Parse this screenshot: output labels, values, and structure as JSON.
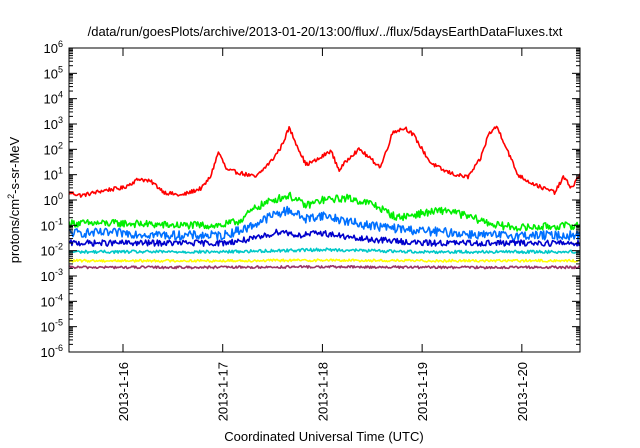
{
  "chart_data": {
    "type": "line",
    "title": "/data/run/goesPlots/archive/2013-01-20/13:00/flux/../flux/5daysEarthDataFluxes.txt",
    "xlabel": "Coordinated Universal Time (UTC)",
    "ylabel_parts": [
      "protons/cm",
      "2",
      "-s-sr-MeV"
    ],
    "y_scale": "log",
    "ylim": [
      1e-06,
      1000000.0
    ],
    "y_ticks": [
      {
        "base": "10",
        "exp": "-6",
        "value": 1e-06
      },
      {
        "base": "10",
        "exp": "-5",
        "value": 1e-05
      },
      {
        "base": "10",
        "exp": "-4",
        "value": 0.0001
      },
      {
        "base": "10",
        "exp": "-3",
        "value": 0.001
      },
      {
        "base": "10",
        "exp": "-2",
        "value": 0.01
      },
      {
        "base": "10",
        "exp": "-1",
        "value": 0.1
      },
      {
        "base": "10",
        "exp": "0",
        "value": 1
      },
      {
        "base": "10",
        "exp": "1",
        "value": 10
      },
      {
        "base": "10",
        "exp": "2",
        "value": 100
      },
      {
        "base": "10",
        "exp": "3",
        "value": 1000
      },
      {
        "base": "10",
        "exp": "4",
        "value": 10000
      },
      {
        "base": "10",
        "exp": "5",
        "value": 100000
      },
      {
        "base": "10",
        "exp": "6",
        "value": 1000000
      }
    ],
    "x_range_days": [
      "2013-01-15 11:00",
      "2013-01-20 14:00"
    ],
    "x_ticks": [
      {
        "label": "2013-1-16",
        "date": "2013-01-16"
      },
      {
        "label": "2013-1-17",
        "date": "2013-01-17"
      },
      {
        "label": "2013-1-18",
        "date": "2013-01-18"
      },
      {
        "label": "2013-1-19",
        "date": "2013-01-19"
      },
      {
        "label": "2013-1-20",
        "date": "2013-01-20"
      }
    ],
    "grid": false,
    "legend": "none",
    "series": [
      {
        "color": "#ff0000",
        "noise": 0.08,
        "x": [
          "2013-01-15 11:00",
          "2013-01-15 14:00",
          "2013-01-15 20:00",
          "2013-01-16 00:00",
          "2013-01-16 04:00",
          "2013-01-16 07:00",
          "2013-01-16 10:00",
          "2013-01-16 14:00",
          "2013-01-16 19:00",
          "2013-01-16 21:00",
          "2013-01-16 23:00",
          "2013-01-17 01:00",
          "2013-01-17 04:00",
          "2013-01-17 08:00",
          "2013-01-17 12:00",
          "2013-01-17 14:00",
          "2013-01-17 16:00",
          "2013-01-17 20:00",
          "2013-01-17 23:00",
          "2013-01-18 02:00",
          "2013-01-18 04:00",
          "2013-01-18 07:00",
          "2013-01-18 09:00",
          "2013-01-18 11:00",
          "2013-01-18 14:00",
          "2013-01-18 17:00",
          "2013-01-18 20:00",
          "2013-01-18 22:00",
          "2013-01-19 00:00",
          "2013-01-19 02:00",
          "2013-01-19 05:00",
          "2013-01-19 08:00",
          "2013-01-19 11:00",
          "2013-01-19 14:00",
          "2013-01-19 16:00",
          "2013-01-19 18:00",
          "2013-01-19 20:00",
          "2013-01-19 23:00",
          "2013-01-20 02:00",
          "2013-01-20 05:00",
          "2013-01-20 08:00",
          "2013-01-20 10:00",
          "2013-01-20 12:00",
          "2013-01-20 14:00"
        ],
        "y": [
          2,
          1.5,
          2.5,
          3,
          7,
          5,
          2,
          1.5,
          3,
          8,
          80,
          15,
          12,
          8,
          40,
          120,
          700,
          25,
          40,
          90,
          15,
          60,
          100,
          50,
          20,
          500,
          700,
          350,
          100,
          30,
          15,
          10,
          8,
          40,
          400,
          800,
          150,
          10,
          5,
          3,
          2,
          8,
          3,
          10
        ]
      },
      {
        "color": "#00ee00",
        "noise": 0.15,
        "x": [
          "2013-01-15 11:00",
          "2013-01-16 00:00",
          "2013-01-16 12:00",
          "2013-01-17 00:00",
          "2013-01-17 04:00",
          "2013-01-17 08:00",
          "2013-01-17 12:00",
          "2013-01-17 16:00",
          "2013-01-17 20:00",
          "2013-01-18 00:00",
          "2013-01-18 06:00",
          "2013-01-18 12:00",
          "2013-01-18 18:00",
          "2013-01-19 00:00",
          "2013-01-19 06:00",
          "2013-01-19 12:00",
          "2013-01-19 18:00",
          "2013-01-20 00:00",
          "2013-01-20 06:00",
          "2013-01-20 14:00"
        ],
        "y": [
          0.12,
          0.12,
          0.1,
          0.1,
          0.15,
          0.5,
          1,
          1.5,
          0.6,
          1,
          1.2,
          0.7,
          0.2,
          0.3,
          0.4,
          0.2,
          0.1,
          0.08,
          0.09,
          0.1
        ]
      },
      {
        "color": "#0070ff",
        "noise": 0.18,
        "x": [
          "2013-01-15 11:00",
          "2013-01-16 00:00",
          "2013-01-16 12:00",
          "2013-01-17 00:00",
          "2013-01-17 06:00",
          "2013-01-17 12:00",
          "2013-01-17 16:00",
          "2013-01-17 20:00",
          "2013-01-18 00:00",
          "2013-01-18 08:00",
          "2013-01-18 16:00",
          "2013-01-19 00:00",
          "2013-01-19 08:00",
          "2013-01-19 16:00",
          "2013-01-20 00:00",
          "2013-01-20 14:00"
        ],
        "y": [
          0.05,
          0.05,
          0.04,
          0.04,
          0.08,
          0.25,
          0.4,
          0.18,
          0.25,
          0.12,
          0.08,
          0.06,
          0.05,
          0.04,
          0.04,
          0.04
        ]
      },
      {
        "color": "#0000cc",
        "noise": 0.12,
        "x": [
          "2013-01-15 11:00",
          "2013-01-16 12:00",
          "2013-01-17 00:00",
          "2013-01-17 08:00",
          "2013-01-17 14:00",
          "2013-01-17 18:00",
          "2013-01-18 00:00",
          "2013-01-18 08:00",
          "2013-01-18 16:00",
          "2013-01-19 00:00",
          "2013-01-20 14:00"
        ],
        "y": [
          0.02,
          0.02,
          0.02,
          0.03,
          0.06,
          0.04,
          0.05,
          0.03,
          0.025,
          0.02,
          0.02
        ]
      },
      {
        "color": "#00c8c8",
        "noise": 0.06,
        "x": [
          "2013-01-15 11:00",
          "2013-01-17 00:00",
          "2013-01-18 00:00",
          "2013-01-19 00:00",
          "2013-01-20 14:00"
        ],
        "y": [
          0.009,
          0.009,
          0.011,
          0.009,
          0.009
        ]
      },
      {
        "color": "#ffff00",
        "noise": 0.05,
        "x": [
          "2013-01-15 11:00",
          "2013-01-17 00:00",
          "2013-01-18 00:00",
          "2013-01-19 00:00",
          "2013-01-20 14:00"
        ],
        "y": [
          0.004,
          0.004,
          0.0042,
          0.004,
          0.004
        ]
      },
      {
        "color": "#993366",
        "noise": 0.05,
        "x": [
          "2013-01-15 11:00",
          "2013-01-17 00:00",
          "2013-01-18 00:00",
          "2013-01-19 00:00",
          "2013-01-20 14:00"
        ],
        "y": [
          0.0022,
          0.0022,
          0.0023,
          0.0022,
          0.0022
        ]
      }
    ]
  }
}
